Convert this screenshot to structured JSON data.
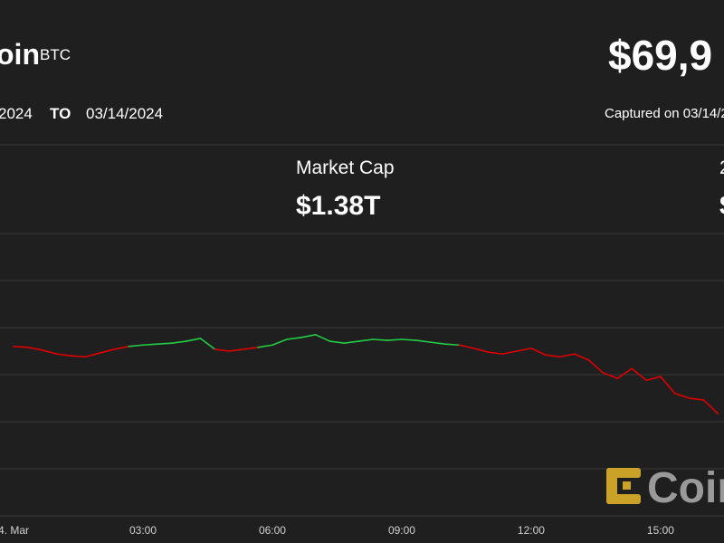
{
  "header": {
    "title": "oin",
    "symbol": "BTC",
    "price": "$69,9",
    "range_from": "2024",
    "range_to_label": "TO",
    "range_to": "03/14/2024",
    "captured": "Captured on 03/14/2"
  },
  "stats": [
    {
      "label": "Market Cap",
      "value": "$1.38T"
    },
    {
      "label": "2",
      "value": "$"
    }
  ],
  "logo": "Coin",
  "chart_data": {
    "type": "line",
    "x": [
      0,
      0.333,
      0.667,
      1,
      1.333,
      1.667,
      2,
      2.333,
      2.667,
      3,
      3.333,
      3.667,
      4,
      4.333,
      4.667,
      5,
      5.333,
      5.667,
      6,
      6.333,
      6.667,
      7,
      7.333,
      7.667,
      8,
      8.333,
      8.667,
      9,
      9.333,
      9.667,
      10,
      10.333,
      10.667,
      11,
      11.333,
      11.667,
      12,
      12.333,
      12.667,
      13,
      13.333,
      13.667,
      14,
      14.333,
      14.667,
      15,
      15.333,
      15.667,
      16,
      16.333
    ],
    "values": [
      71600,
      71580,
      71520,
      71440,
      71400,
      71380,
      71460,
      71540,
      71600,
      71630,
      71650,
      71670,
      71710,
      71770,
      71540,
      71500,
      71540,
      71580,
      71630,
      71750,
      71790,
      71850,
      71710,
      71670,
      71710,
      71750,
      71730,
      71750,
      71730,
      71690,
      71650,
      71630,
      71560,
      71480,
      71440,
      71500,
      71560,
      71420,
      71380,
      71440,
      71310,
      71040,
      70920,
      71130,
      70880,
      70960,
      70600,
      70500,
      70460,
      70170
    ],
    "up_color": "#22cc44",
    "down_color": "#e00000",
    "xlim": [
      -0.315,
      16.47
    ],
    "xticks": [
      {
        "value": 0,
        "label": "4. Mar"
      },
      {
        "value": 3,
        "label": "03:00"
      },
      {
        "value": 6,
        "label": "06:00"
      },
      {
        "value": 9,
        "label": "09:00"
      },
      {
        "value": 12,
        "label": "12:00"
      },
      {
        "value": 15,
        "label": "15:00"
      }
    ],
    "ylim": [
      68000,
      74000
    ],
    "yticks": [
      68000,
      69000,
      70000,
      71000,
      72000,
      73000,
      74000
    ],
    "grid": true
  }
}
